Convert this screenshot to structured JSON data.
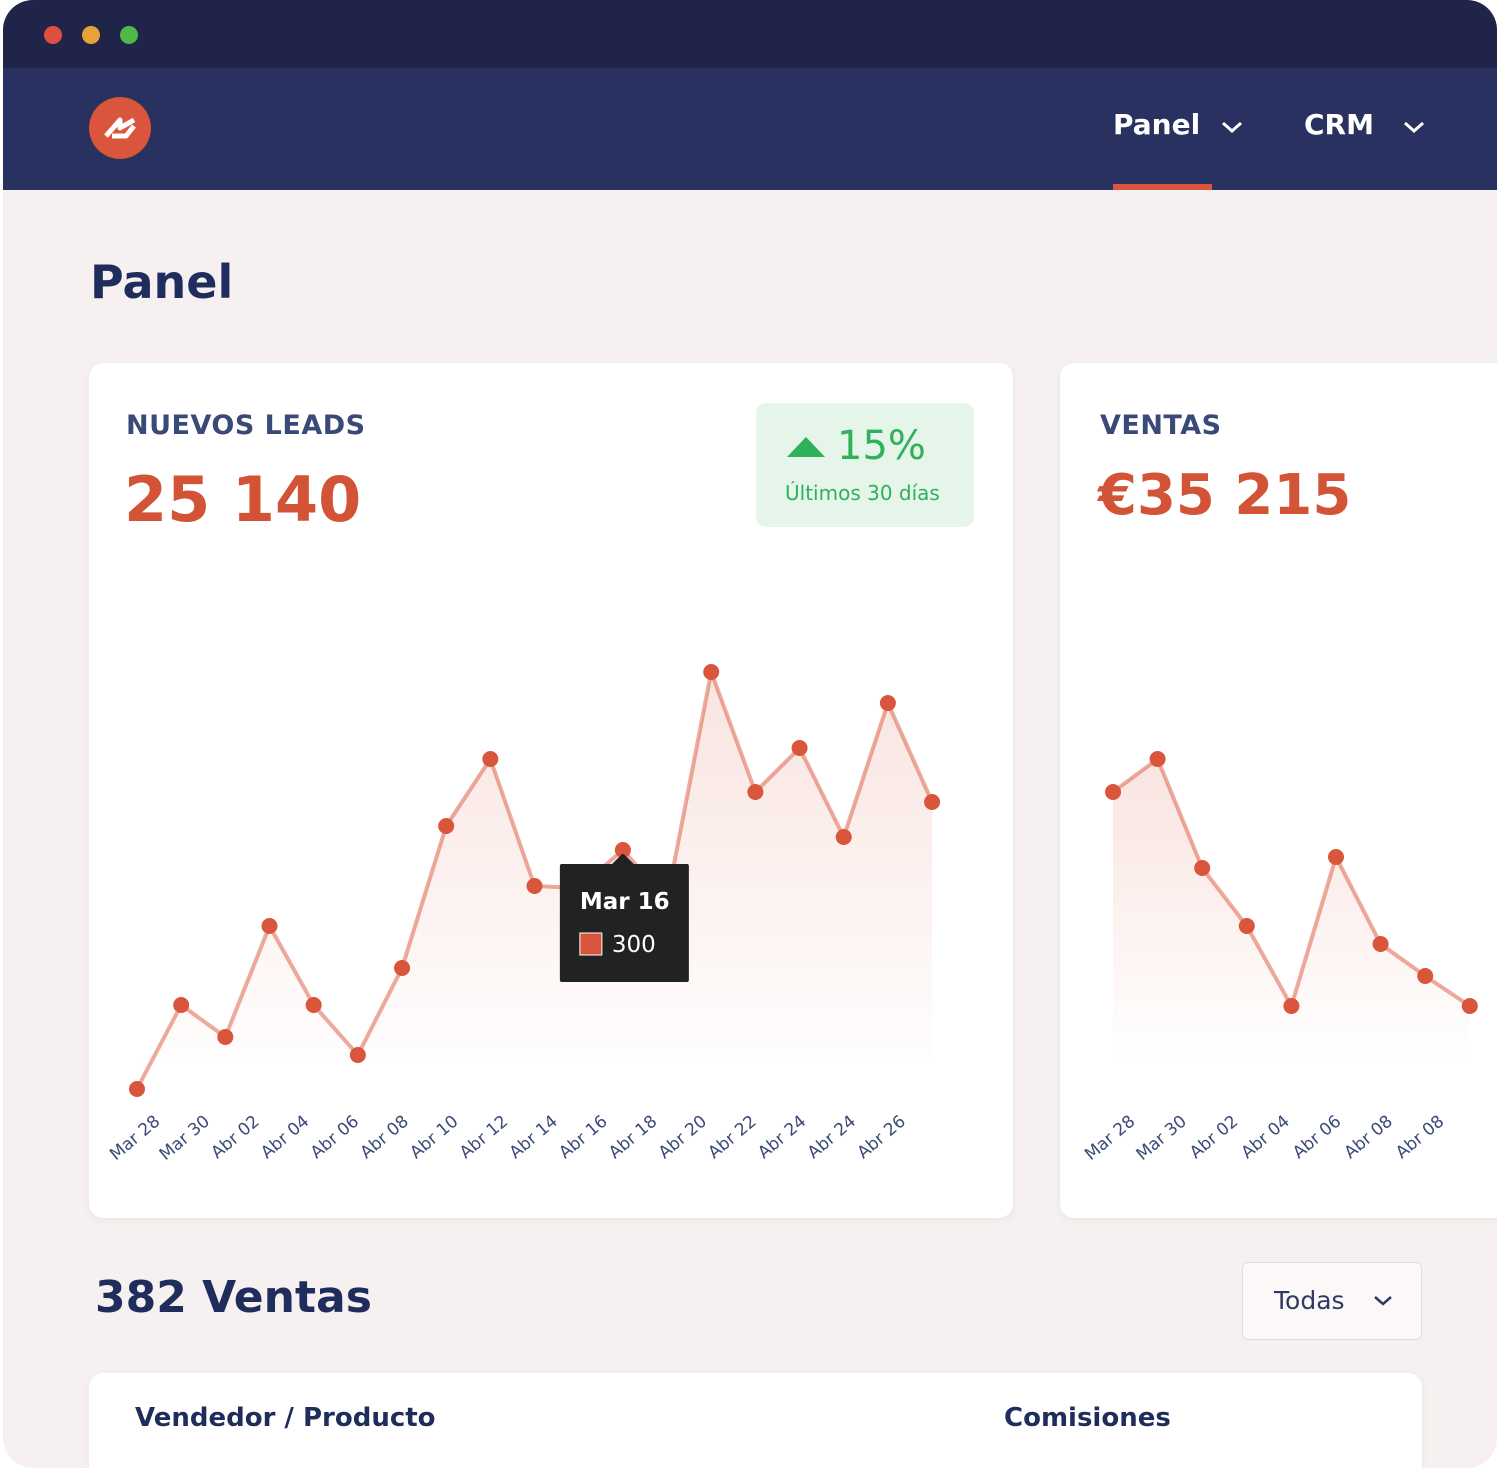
{
  "nav": {
    "items": [
      "Panel",
      "CRM"
    ]
  },
  "page_title": "Panel",
  "kpis": [
    {
      "label": "NUEVOS LEADS",
      "value": "25 140",
      "badge": {
        "change": "15%",
        "period": "Últimos 30 días"
      }
    },
    {
      "label": "VENTAS",
      "value": "€35 215"
    }
  ],
  "chart_data": [
    {
      "type": "line",
      "color": "#d9553b",
      "x_labels": [
        "Mar 28",
        "Mar 30",
        "Abr 02",
        "Abr 04",
        "Abr 06",
        "Abr 08",
        "Abr 10",
        "Abr 12",
        "Abr 14",
        "Abr 16",
        "Abr 18",
        "Abr 20",
        "Abr 22",
        "Abr 24",
        "Abr 24",
        "Abr 26"
      ],
      "values": [
        61,
        145,
        113,
        224,
        145,
        95,
        182,
        324,
        391,
        264,
        262,
        300,
        250,
        478,
        358,
        402,
        313,
        447,
        348
      ],
      "tooltip": {
        "title": "Mar 16",
        "value": 300
      }
    },
    {
      "type": "line",
      "color": "#d9553b",
      "x_labels": [
        "Mar 28",
        "Mar 30",
        "Abr 02",
        "Abr 04",
        "Abr 06",
        "Abr 08",
        "Abr 08"
      ],
      "values": [
        358,
        391,
        282,
        224,
        144,
        293,
        206,
        174,
        144
      ]
    }
  ],
  "sales": {
    "title": "382 Ventas",
    "filter": "Todas",
    "columns": [
      "Vendedor / Producto",
      "Comisiones"
    ]
  }
}
